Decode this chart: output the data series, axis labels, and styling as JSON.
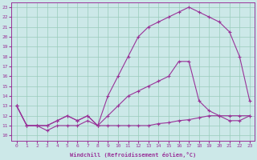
{
  "xlabel": "Windchill (Refroidissement éolien,°C)",
  "xlim": [
    -0.5,
    23.5
  ],
  "ylim": [
    9.5,
    23.5
  ],
  "xticks": [
    0,
    1,
    2,
    3,
    4,
    5,
    6,
    7,
    8,
    9,
    10,
    11,
    12,
    13,
    14,
    15,
    16,
    17,
    18,
    19,
    20,
    21,
    22,
    23
  ],
  "yticks": [
    10,
    11,
    12,
    13,
    14,
    15,
    16,
    17,
    18,
    19,
    20,
    21,
    22,
    23
  ],
  "bg_color": "#cce8e8",
  "line_color": "#993399",
  "grid_color": "#99ccbb",
  "line1_x": [
    0,
    1,
    2,
    3,
    4,
    5,
    6,
    7,
    8,
    9,
    10,
    11,
    12,
    13,
    14,
    15,
    16,
    17,
    18,
    19,
    20,
    21,
    22,
    23
  ],
  "line1_y": [
    13,
    11,
    11,
    10.5,
    11,
    11,
    11,
    11.5,
    11,
    11,
    11,
    11,
    11,
    11,
    11.2,
    11.3,
    11.5,
    11.6,
    11.8,
    12,
    12,
    12,
    12,
    12
  ],
  "line2_x": [
    0,
    1,
    2,
    3,
    4,
    5,
    6,
    7,
    8,
    9,
    10,
    11,
    12,
    13,
    14,
    15,
    16,
    17,
    18,
    19,
    20,
    21,
    22,
    23
  ],
  "line2_y": [
    13,
    11,
    11,
    11,
    11.5,
    12,
    11.5,
    12,
    11,
    12,
    13,
    14,
    14.5,
    15,
    15.5,
    16,
    17.5,
    17.5,
    13.5,
    12.5,
    12,
    11.5,
    11.5,
    12
  ],
  "line3_x": [
    0,
    1,
    2,
    3,
    4,
    5,
    6,
    7,
    8,
    9,
    10,
    11,
    12,
    13,
    14,
    15,
    16,
    17,
    18,
    19,
    20,
    21,
    22,
    23
  ],
  "line3_y": [
    13,
    11,
    11,
    11,
    11.5,
    12,
    11.5,
    12,
    11,
    14,
    16,
    18,
    20,
    21,
    21.5,
    22,
    22.5,
    23,
    22.5,
    22,
    21.5,
    20.5,
    18,
    13.5
  ]
}
